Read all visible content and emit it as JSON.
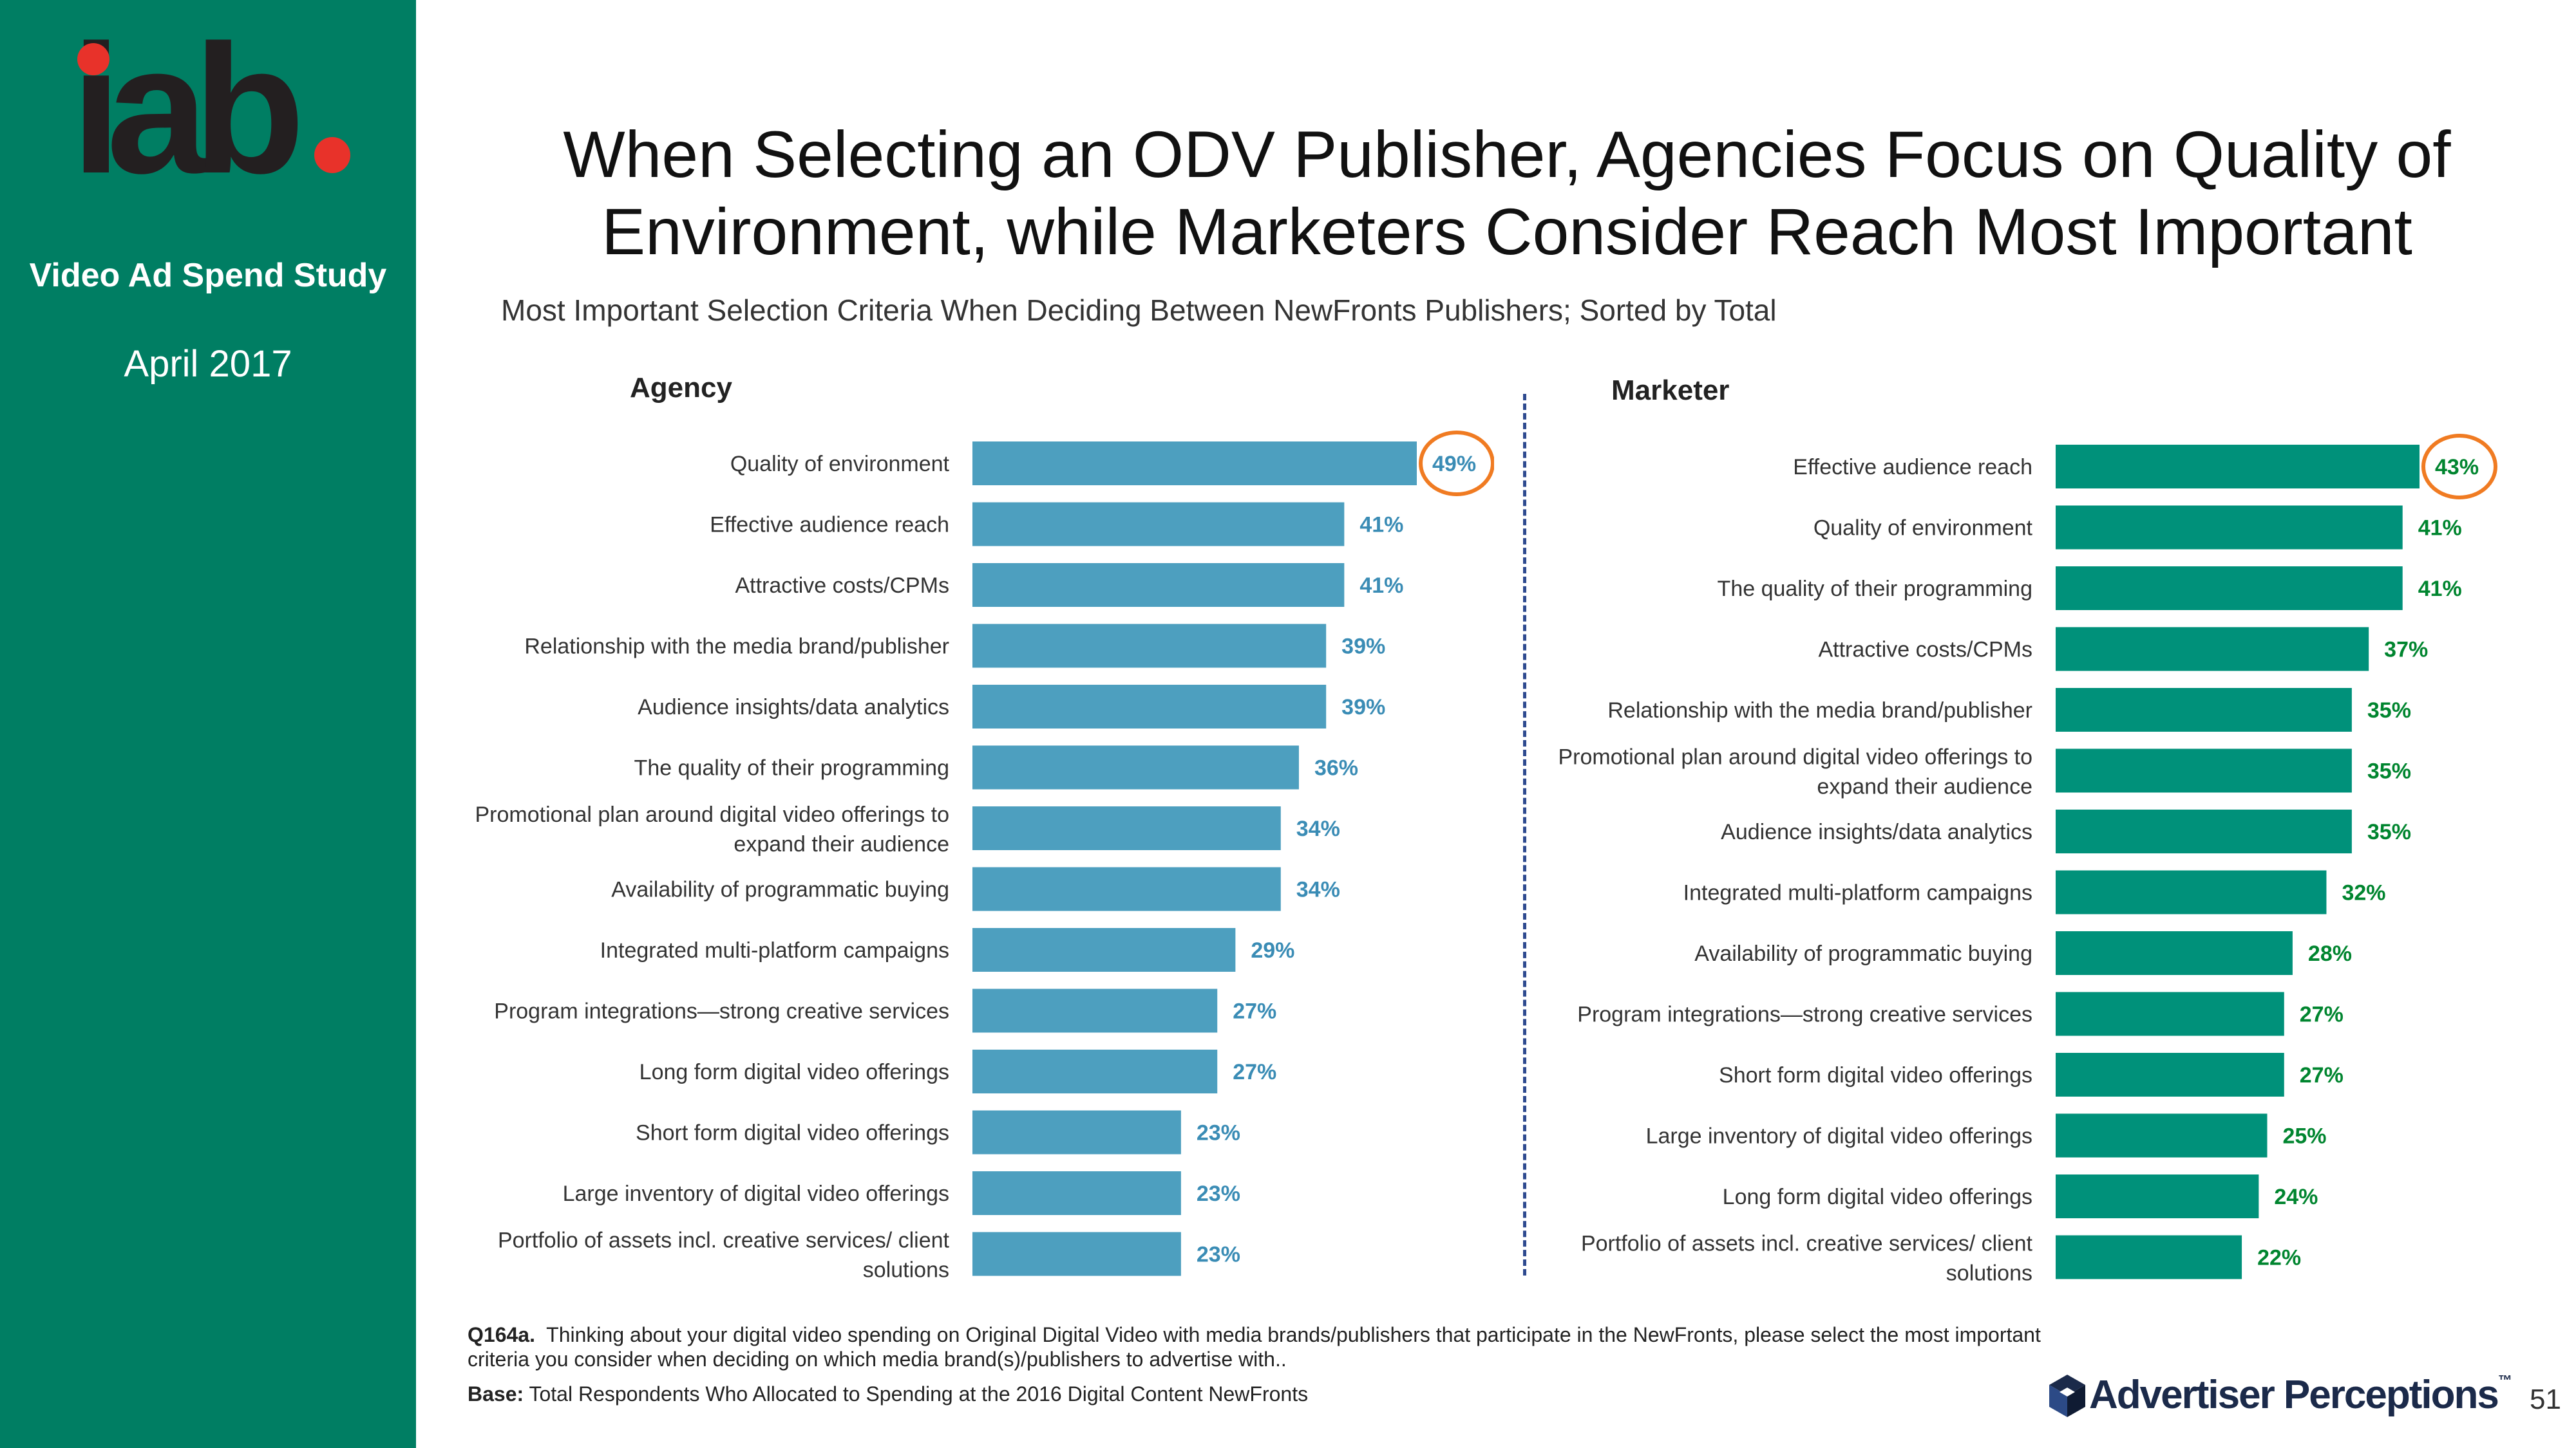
{
  "sidebar": {
    "logo_text": "iab",
    "study": "Video Ad Spend Study",
    "date": "April 2017"
  },
  "title": "When Selecting an ODV Publisher, Agencies Focus on Quality of Environment, while Marketers Consider Reach Most Important",
  "subtitle": "Most Important Selection Criteria When Deciding Between NewFronts Publishers; Sorted by Total",
  "colors": {
    "agency_bar": "#4d9fbf",
    "agency_value": "#3a8cb5",
    "marketer_bar": "#00917a",
    "marketer_value": "#00852f",
    "highlight_circle": "#f07b22",
    "sidebar": "#007e63"
  },
  "chart_data": [
    {
      "type": "bar",
      "orientation": "horizontal",
      "panel": "Agency",
      "xlim": [
        0,
        49
      ],
      "highlighted": "Quality of environment",
      "categories": [
        "Quality of environment",
        "Effective audience reach",
        "Attractive costs/CPMs",
        "Relationship with the media brand/publisher",
        "Audience insights/data analytics",
        "The quality of their programming",
        "Promotional plan around digital video offerings to expand their audience",
        "Availability of programmatic buying",
        "Integrated multi-platform campaigns",
        "Program integrations—strong creative services",
        "Long form digital video offerings",
        "Short form digital video offerings",
        "Large inventory of digital video offerings",
        "Portfolio of assets incl. creative services/ client solutions"
      ],
      "label_lines": [
        [
          "Quality of environment"
        ],
        [
          "Effective audience reach"
        ],
        [
          "Attractive costs/CPMs"
        ],
        [
          "Relationship with the media brand/publisher"
        ],
        [
          "Audience insights/data analytics"
        ],
        [
          "The quality of their programming"
        ],
        [
          "Promotional plan around digital video offerings to",
          "expand their audience"
        ],
        [
          "Availability of programmatic buying"
        ],
        [
          "Integrated multi-platform campaigns"
        ],
        [
          "Program integrations—strong creative services"
        ],
        [
          "Long form digital video offerings"
        ],
        [
          "Short form digital video offerings"
        ],
        [
          "Large inventory of digital video offerings"
        ],
        [
          "Portfolio of assets incl. creative services/ client",
          "solutions"
        ]
      ],
      "values": [
        49,
        41,
        41,
        39,
        39,
        36,
        34,
        34,
        29,
        27,
        27,
        23,
        23,
        23
      ],
      "value_labels": [
        "49%",
        "41%",
        "41%",
        "39%",
        "39%",
        "36%",
        "34%",
        "34%",
        "29%",
        "27%",
        "27%",
        "23%",
        "23%",
        "23%"
      ]
    },
    {
      "type": "bar",
      "orientation": "horizontal",
      "panel": "Marketer",
      "xlim": [
        0,
        43
      ],
      "highlighted": "Effective audience reach",
      "categories": [
        "Effective audience reach",
        "Quality of environment",
        "The quality of their programming",
        "Attractive costs/CPMs",
        "Relationship with the media brand/publisher",
        "Promotional plan around digital video offerings to expand their audience",
        "Audience insights/data analytics",
        "Integrated multi-platform campaigns",
        "Availability of programmatic buying",
        "Program integrations—strong creative services",
        "Short form digital video offerings",
        "Large inventory of digital video offerings",
        "Long form digital video offerings",
        "Portfolio of assets incl. creative services/ client solutions"
      ],
      "label_lines": [
        [
          "Effective audience reach"
        ],
        [
          "Quality of environment"
        ],
        [
          "The quality of their programming"
        ],
        [
          "Attractive costs/CPMs"
        ],
        [
          "Relationship with the media brand/publisher"
        ],
        [
          "Promotional plan around digital video offerings to",
          "expand their audience"
        ],
        [
          "Audience insights/data analytics"
        ],
        [
          "Integrated multi-platform campaigns"
        ],
        [
          "Availability of programmatic buying"
        ],
        [
          "Program integrations—strong creative services"
        ],
        [
          "Short form digital video offerings"
        ],
        [
          "Large inventory of digital video offerings"
        ],
        [
          "Long form digital video offerings"
        ],
        [
          "Portfolio of assets incl. creative services/ client",
          "solutions"
        ]
      ],
      "values": [
        43,
        41,
        41,
        37,
        35,
        35,
        35,
        32,
        28,
        27,
        27,
        25,
        24,
        22
      ],
      "value_labels": [
        "43%",
        "41%",
        "41%",
        "37%",
        "35%",
        "35%",
        "35%",
        "32%",
        "28%",
        "27%",
        "27%",
        "25%",
        "24%",
        "22%"
      ]
    }
  ],
  "footnote": {
    "q_label": "Q164a.",
    "q_text": "Thinking about your digital video spending on Original Digital Video with media brands/publishers that participate in the NewFronts, please select the most important criteria you consider when deciding on which media brand(s)/publishers to advertise with..",
    "base_label": "Base:",
    "base_text": "Total Respondents Who Allocated to Spending at the 2016 Digital Content NewFronts"
  },
  "branding": {
    "company": "Advertiser Perceptions",
    "tm": "™",
    "logo_icon": "cube-icon"
  },
  "page_number": "51"
}
